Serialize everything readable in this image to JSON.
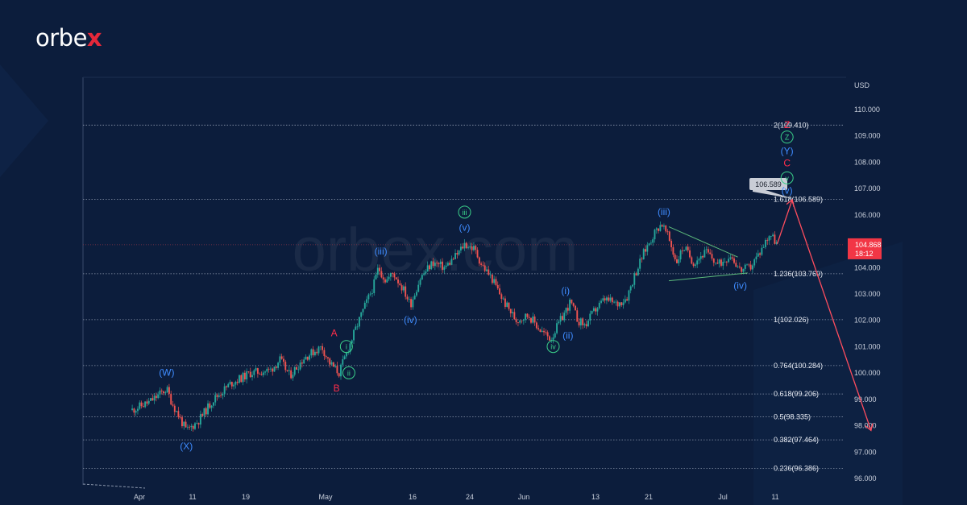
{
  "brand": {
    "prefix": "orbe",
    "accent": "x",
    "accent_color": "#e5283a"
  },
  "watermark": "orbex.com",
  "colors": {
    "bg": "#0c1d3c",
    "up": "#26a69a",
    "down": "#ef5350",
    "blue_label": "#3f8cff",
    "red_label": "#ff2d4a",
    "green_label": "#3bd18a",
    "fib_line": "#8c98ad",
    "grid": "#1b2e50",
    "price_bg": "#f23645",
    "projection": "#ff4d5e",
    "triangle": "#5dbb7c",
    "pointer_bg": "#c9cdd6"
  },
  "chart_data": {
    "type": "candlestick",
    "currency_label": "USD",
    "ylim": [
      95.7,
      110.9
    ],
    "y_ticks": [
      "110.000",
      "109.000",
      "108.000",
      "107.000",
      "106.000",
      "105.000",
      "104.000",
      "103.000",
      "102.000",
      "101.000",
      "100.000",
      "99.000",
      "98.000",
      "97.000",
      "96.000"
    ],
    "x_ticks": [
      "Apr",
      "11",
      "19",
      "May",
      "16",
      "24",
      "Jun",
      "13",
      "21",
      "Jul",
      "11"
    ],
    "current_price": {
      "price": "104.868",
      "countdown": "18:12"
    },
    "price_pointer": "106.589",
    "fib_levels": [
      {
        "label": "2(109.410)",
        "value": 109.41
      },
      {
        "label": "1.618(106.589)",
        "value": 106.589
      },
      {
        "label": "1.236(103.769)",
        "value": 103.769
      },
      {
        "label": "1(102.026)",
        "value": 102.026
      },
      {
        "label": "0.764(100.284)",
        "value": 100.284
      },
      {
        "label": "0.618(99.206)",
        "value": 99.206
      },
      {
        "label": "0.5(98.335)",
        "value": 98.335
      },
      {
        "label": "0.382(97.464)",
        "value": 97.464
      },
      {
        "label": "0.236(96.386)",
        "value": 96.386
      }
    ],
    "price_path": [
      {
        "x": 0,
        "y": 98.6
      },
      {
        "x": 7,
        "y": 98.9
      },
      {
        "x": 14,
        "y": 99.4
      },
      {
        "x": 16,
        "y": 98.9
      },
      {
        "x": 22,
        "y": 97.8
      },
      {
        "x": 27,
        "y": 98.2
      },
      {
        "x": 33,
        "y": 99.0
      },
      {
        "x": 40,
        "y": 99.6
      },
      {
        "x": 48,
        "y": 100.0
      },
      {
        "x": 56,
        "y": 100.1
      },
      {
        "x": 60,
        "y": 100.5
      },
      {
        "x": 64,
        "y": 99.9
      },
      {
        "x": 70,
        "y": 100.6
      },
      {
        "x": 77,
        "y": 101.0
      },
      {
        "x": 80,
        "y": 100.4
      },
      {
        "x": 84,
        "y": 100.0
      },
      {
        "x": 88,
        "y": 101.0
      },
      {
        "x": 93,
        "y": 102.2
      },
      {
        "x": 98,
        "y": 103.3
      },
      {
        "x": 100,
        "y": 104.0
      },
      {
        "x": 103,
        "y": 103.5
      },
      {
        "x": 106,
        "y": 103.8
      },
      {
        "x": 110,
        "y": 103.2
      },
      {
        "x": 113,
        "y": 102.6
      },
      {
        "x": 117,
        "y": 103.6
      },
      {
        "x": 122,
        "y": 104.2
      },
      {
        "x": 127,
        "y": 104.0
      },
      {
        "x": 132,
        "y": 104.5
      },
      {
        "x": 135,
        "y": 104.9
      },
      {
        "x": 139,
        "y": 104.7
      },
      {
        "x": 142,
        "y": 104.1
      },
      {
        "x": 146,
        "y": 103.6
      },
      {
        "x": 151,
        "y": 102.7
      },
      {
        "x": 156,
        "y": 102.0
      },
      {
        "x": 161,
        "y": 102.2
      },
      {
        "x": 166,
        "y": 101.6
      },
      {
        "x": 170,
        "y": 101.3
      },
      {
        "x": 174,
        "y": 102.0
      },
      {
        "x": 178,
        "y": 102.7
      },
      {
        "x": 181,
        "y": 102.0
      },
      {
        "x": 184,
        "y": 101.8
      },
      {
        "x": 188,
        "y": 102.4
      },
      {
        "x": 192,
        "y": 102.8
      },
      {
        "x": 197,
        "y": 102.6
      },
      {
        "x": 201,
        "y": 102.9
      },
      {
        "x": 204,
        "y": 103.7
      },
      {
        "x": 208,
        "y": 104.6
      },
      {
        "x": 212,
        "y": 105.3
      },
      {
        "x": 215,
        "y": 105.7
      },
      {
        "x": 218,
        "y": 105.1
      },
      {
        "x": 221,
        "y": 104.2
      },
      {
        "x": 224,
        "y": 104.8
      },
      {
        "x": 228,
        "y": 104.2
      },
      {
        "x": 233,
        "y": 104.6
      },
      {
        "x": 238,
        "y": 104.1
      },
      {
        "x": 243,
        "y": 104.5
      },
      {
        "x": 247,
        "y": 103.9
      },
      {
        "x": 251,
        "y": 104.0
      },
      {
        "x": 255,
        "y": 104.6
      },
      {
        "x": 259,
        "y": 105.3
      },
      {
        "x": 262,
        "y": 104.9
      }
    ],
    "x_day_range": [
      -20,
      290
    ],
    "projection": [
      {
        "x": 262,
        "y": 104.9
      },
      {
        "x": 268,
        "y": 106.55
      },
      {
        "x": 300,
        "y": 97.85
      }
    ],
    "triangle": [
      {
        "from": {
          "x": 218,
          "y": 105.55
        },
        "to": {
          "x": 246,
          "y": 104.4
        }
      },
      {
        "from": {
          "x": 218,
          "y": 103.5
        },
        "to": {
          "x": 250,
          "y": 103.8
        }
      }
    ],
    "wave_labels": [
      {
        "text": "(W)",
        "x": 14,
        "y": 99.9,
        "color": "blue"
      },
      {
        "text": "(X)",
        "x": 22,
        "y": 97.1,
        "color": "blue"
      },
      {
        "text": "A",
        "x": 82,
        "y": 101.4,
        "color": "red"
      },
      {
        "text": "B",
        "x": 83,
        "y": 99.3,
        "color": "red"
      },
      {
        "text": "i",
        "x": 87,
        "y": 100.9,
        "color": "green",
        "circle": true
      },
      {
        "text": "ii",
        "x": 88,
        "y": 99.9,
        "color": "green",
        "circle": true
      },
      {
        "text": "(iii)",
        "x": 101,
        "y": 104.5,
        "color": "blue"
      },
      {
        "text": "(iv)",
        "x": 113,
        "y": 101.9,
        "color": "blue"
      },
      {
        "text": "(v)",
        "x": 135,
        "y": 105.4,
        "color": "blue"
      },
      {
        "text": "iii",
        "x": 135,
        "y": 106.0,
        "color": "green",
        "circle": true
      },
      {
        "text": "iv",
        "x": 171,
        "y": 100.9,
        "color": "green",
        "circle": true
      },
      {
        "text": "(i)",
        "x": 176,
        "y": 103.0,
        "color": "blue"
      },
      {
        "text": "(ii)",
        "x": 177,
        "y": 101.3,
        "color": "blue"
      },
      {
        "text": "(iii)",
        "x": 216,
        "y": 106.0,
        "color": "blue"
      },
      {
        "text": "(iv)",
        "x": 247,
        "y": 103.2,
        "color": "blue"
      },
      {
        "text": "(v)",
        "x": 266,
        "y": 106.8,
        "color": "blue"
      },
      {
        "text": "v",
        "x": 266,
        "y": 107.3,
        "color": "green",
        "circle": true
      },
      {
        "text": "C",
        "x": 266,
        "y": 107.85,
        "color": "red"
      },
      {
        "text": "(Y)",
        "x": 266,
        "y": 108.3,
        "color": "blue"
      },
      {
        "text": "Z",
        "x": 266,
        "y": 108.85,
        "color": "green",
        "circle": true
      },
      {
        "text": "Z",
        "x": 266,
        "y": 109.3,
        "color": "red"
      }
    ]
  }
}
